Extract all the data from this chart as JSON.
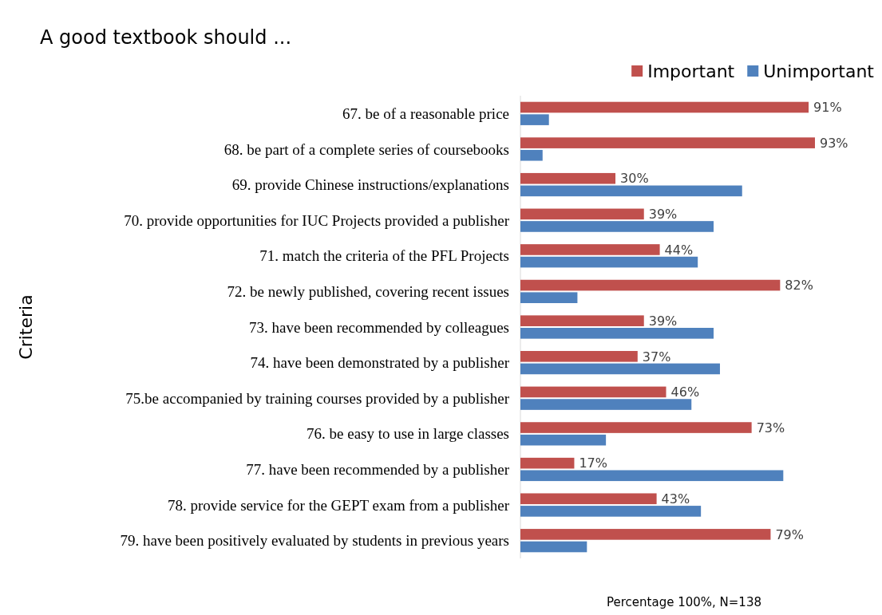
{
  "chart_data": {
    "type": "bar",
    "orientation": "horizontal",
    "title": "A good textbook should ...",
    "ylabel": "Criteria",
    "xlabel": "Percentage 100%, N=138",
    "categories": [
      "67. be of a reasonable price",
      "68. be part of a complete series of coursebooks",
      "69. provide Chinese instructions/explanations",
      "70. provide opportunities for IUC Projects provided a publisher",
      "71. match the criteria of the PFL Projects",
      "72. be newly published, covering recent issues",
      "73. have been recommended by colleagues",
      "74. have been demonstrated by a publisher",
      "75.be accompanied by training courses provided by a publisher",
      "76. be easy to use in large classes",
      "77. have been recommended by a publisher",
      "78. provide service for the GEPT exam  from a publisher",
      "79. have been positively evaluated by students in previous years"
    ],
    "series": [
      {
        "name": "Important",
        "color": "#c0504d",
        "values": [
          91,
          93,
          30,
          39,
          44,
          82,
          39,
          37,
          46,
          73,
          17,
          43,
          79
        ],
        "value_labels": [
          "91%",
          "93%",
          "30%",
          "39%",
          "44%",
          "82%",
          "39%",
          "37%",
          "46%",
          "73%",
          "17%",
          "43%",
          "79%"
        ]
      },
      {
        "name": "Unimportant",
        "color": "#4f81bd",
        "values": [
          9,
          7,
          70,
          61,
          56,
          18,
          61,
          63,
          54,
          27,
          83,
          57,
          21
        ]
      }
    ],
    "tick_labels": "y",
    "legend": "top right"
  }
}
